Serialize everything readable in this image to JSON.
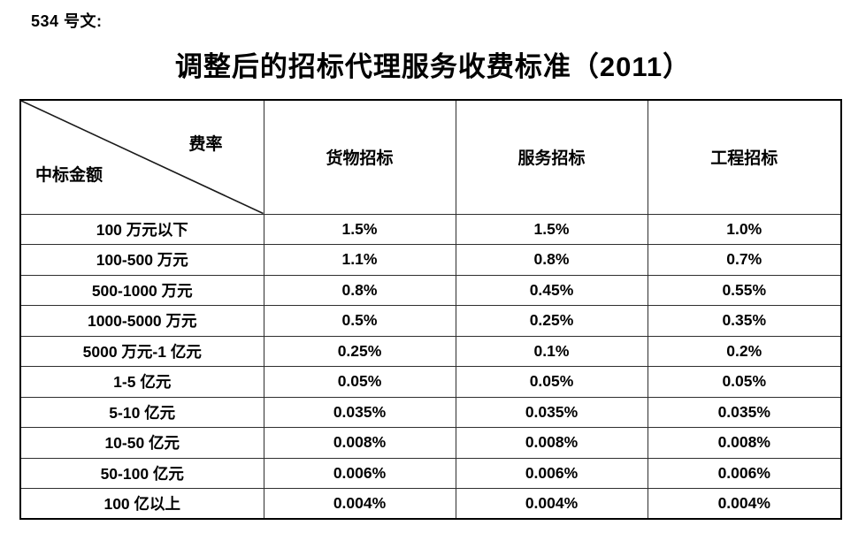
{
  "page": {
    "doc_label": "534 号文:",
    "title": "调整后的招标代理服务收费标准（2011）"
  },
  "table": {
    "corner_top_right": "费率",
    "corner_bottom_left": "中标金额",
    "columns": [
      "货物招标",
      "服务招标",
      "工程招标"
    ],
    "rows": [
      {
        "label": "100 万元以下",
        "values": [
          "1.5%",
          "1.5%",
          "1.0%"
        ]
      },
      {
        "label": "100-500 万元",
        "values": [
          "1.1%",
          "0.8%",
          "0.7%"
        ]
      },
      {
        "label": "500-1000 万元",
        "values": [
          "0.8%",
          "0.45%",
          "0.55%"
        ]
      },
      {
        "label": "1000-5000 万元",
        "values": [
          "0.5%",
          "0.25%",
          "0.35%"
        ]
      },
      {
        "label": "5000 万元-1 亿元",
        "values": [
          "0.25%",
          "0.1%",
          "0.2%"
        ]
      },
      {
        "label": "1-5 亿元",
        "values": [
          "0.05%",
          "0.05%",
          "0.05%"
        ]
      },
      {
        "label": "5-10 亿元",
        "values": [
          "0.035%",
          "0.035%",
          "0.035%"
        ]
      },
      {
        "label": "10-50 亿元",
        "values": [
          "0.008%",
          "0.008%",
          "0.008%"
        ]
      },
      {
        "label": "50-100 亿元",
        "values": [
          "0.006%",
          "0.006%",
          "0.006%"
        ]
      },
      {
        "label": "100 亿以上",
        "values": [
          "0.004%",
          "0.004%",
          "0.004%"
        ]
      }
    ]
  }
}
